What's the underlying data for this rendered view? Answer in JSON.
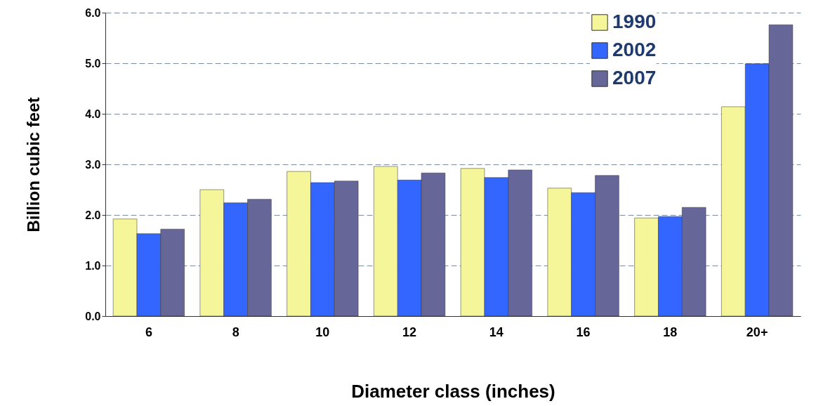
{
  "chart_data": {
    "type": "bar",
    "xlabel": "Diameter class (inches)",
    "ylabel": "Billion cubic feet",
    "categories": [
      "6",
      "8",
      "10",
      "12",
      "14",
      "16",
      "18",
      "20+"
    ],
    "series": [
      {
        "name": "1990",
        "color": "#f5f59a",
        "values": [
          1.92,
          2.5,
          2.86,
          2.96,
          2.92,
          2.53,
          1.94,
          4.14
        ]
      },
      {
        "name": "2002",
        "color": "#3366ff",
        "values": [
          1.63,
          2.24,
          2.64,
          2.69,
          2.74,
          2.44,
          1.97,
          4.99
        ]
      },
      {
        "name": "2007",
        "color": "#666699",
        "values": [
          1.72,
          2.31,
          2.67,
          2.83,
          2.89,
          2.78,
          2.15,
          5.76
        ]
      }
    ],
    "ylim": [
      0,
      6
    ],
    "yticks": [
      {
        "value": 0,
        "label": "0.0"
      },
      {
        "value": 1,
        "label": "1.0"
      },
      {
        "value": 2,
        "label": "2.0"
      },
      {
        "value": 3,
        "label": "3.0"
      },
      {
        "value": 4,
        "label": "4.0"
      },
      {
        "value": 5,
        "label": "5.0"
      },
      {
        "value": 6,
        "label": "6.0"
      }
    ],
    "grid": "y",
    "legend": "top right"
  }
}
